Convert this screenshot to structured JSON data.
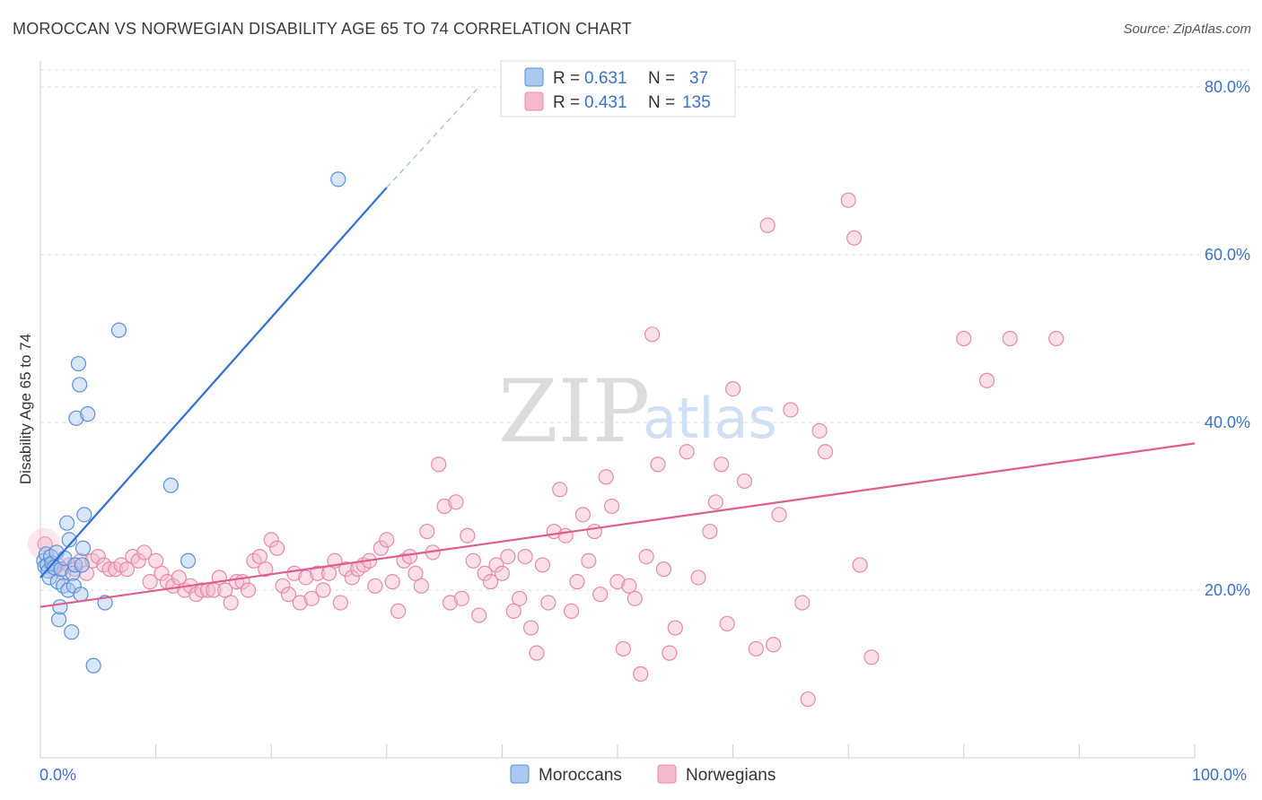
{
  "header": {
    "title": "MOROCCAN VS NORWEGIAN DISABILITY AGE 65 TO 74 CORRELATION CHART",
    "source": "Source: ZipAtlas.com"
  },
  "watermark": {
    "zip": "ZIP",
    "atlas": "atlas"
  },
  "colors": {
    "moroccan_fill": "#aac8f0",
    "moroccan_stroke": "#5b8fd6",
    "moroccan_line": "#2f6fd0",
    "norwegian_fill": "#f6b8cc",
    "norwegian_stroke": "#e48aa8",
    "norwegian_line": "#e05c8c",
    "tick_text": "#3b72c4"
  },
  "legend": {
    "rows": [
      {
        "r_label": "R =",
        "r_value": "0.631",
        "n_label": "N =",
        "n_value": "37"
      },
      {
        "r_label": "R =",
        "r_value": "0.431",
        "n_label": "N =",
        "n_value": "135"
      }
    ]
  },
  "chart_data": {
    "type": "scatter",
    "title": "MOROCCAN VS NORWEGIAN DISABILITY AGE 65 TO 74 CORRELATION CHART",
    "xlabel": "",
    "ylabel": "Disability Age 65 to 74",
    "xlim": [
      0,
      100
    ],
    "ylim": [
      0,
      80
    ],
    "x_tick_labels": [
      "0.0%",
      "100.0%"
    ],
    "y_ticks": [
      20,
      40,
      60,
      80
    ],
    "y_tick_labels": [
      "20.0%",
      "40.0%",
      "60.0%",
      "80.0%"
    ],
    "grid": true,
    "legend_position": "top-center",
    "series": [
      {
        "name": "Moroccans",
        "r": 0.631,
        "n": 37,
        "trend": {
          "x0": 0,
          "y0": 21.5,
          "x1": 30,
          "y1": 68,
          "dash_to_x": 38,
          "dash_to_y": 80
        },
        "points": [
          [
            0.3,
            23.5
          ],
          [
            0.4,
            22.8
          ],
          [
            0.5,
            24.3
          ],
          [
            0.6,
            23.0
          ],
          [
            0.7,
            22.3
          ],
          [
            0.8,
            21.5
          ],
          [
            0.9,
            24.0
          ],
          [
            1.0,
            23.2
          ],
          [
            1.2,
            22.7
          ],
          [
            1.4,
            24.5
          ],
          [
            1.5,
            21.0
          ],
          [
            1.6,
            16.5
          ],
          [
            1.7,
            18.0
          ],
          [
            1.8,
            22.5
          ],
          [
            2.0,
            20.5
          ],
          [
            2.1,
            23.8
          ],
          [
            2.3,
            28.0
          ],
          [
            2.4,
            20.0
          ],
          [
            2.5,
            26.0
          ],
          [
            2.7,
            15.0
          ],
          [
            2.8,
            22.0
          ],
          [
            2.9,
            20.5
          ],
          [
            3.0,
            23.0
          ],
          [
            3.1,
            40.5
          ],
          [
            3.3,
            47.0
          ],
          [
            3.4,
            44.5
          ],
          [
            3.5,
            19.5
          ],
          [
            3.6,
            23.0
          ],
          [
            3.7,
            25.0
          ],
          [
            3.8,
            29.0
          ],
          [
            4.1,
            41.0
          ],
          [
            4.6,
            11.0
          ],
          [
            5.6,
            18.5
          ],
          [
            6.8,
            51.0
          ],
          [
            11.3,
            32.5
          ],
          [
            12.8,
            23.5
          ],
          [
            25.8,
            69.0
          ]
        ]
      },
      {
        "name": "Norwegians",
        "r": 0.431,
        "n": 135,
        "trend": {
          "x0": 0,
          "y0": 18.0,
          "x1": 100,
          "y1": 37.5
        },
        "points": [
          [
            0.4,
            25.5
          ],
          [
            1.0,
            22.5
          ],
          [
            1.5,
            23.0
          ],
          [
            2.0,
            22.0
          ],
          [
            2.5,
            23.0
          ],
          [
            3.0,
            22.5
          ],
          [
            3.5,
            23.5
          ],
          [
            4.0,
            22.0
          ],
          [
            4.5,
            23.5
          ],
          [
            5.0,
            24.0
          ],
          [
            5.5,
            23.0
          ],
          [
            6.0,
            22.5
          ],
          [
            6.5,
            22.5
          ],
          [
            7.0,
            23.0
          ],
          [
            7.5,
            22.5
          ],
          [
            8.0,
            24.0
          ],
          [
            8.5,
            23.5
          ],
          [
            9.0,
            24.5
          ],
          [
            9.5,
            21.0
          ],
          [
            10.0,
            23.5
          ],
          [
            10.5,
            22.0
          ],
          [
            11.0,
            21.0
          ],
          [
            11.5,
            20.5
          ],
          [
            12.0,
            21.5
          ],
          [
            12.5,
            20.0
          ],
          [
            13.0,
            20.5
          ],
          [
            13.5,
            19.5
          ],
          [
            14.0,
            20.0
          ],
          [
            14.5,
            20.0
          ],
          [
            15.0,
            20.0
          ],
          [
            15.5,
            21.5
          ],
          [
            16.0,
            20.0
          ],
          [
            16.5,
            18.5
          ],
          [
            17.0,
            21.0
          ],
          [
            17.5,
            21.0
          ],
          [
            18.0,
            20.0
          ],
          [
            18.5,
            23.5
          ],
          [
            19.0,
            24.0
          ],
          [
            19.5,
            22.5
          ],
          [
            20.0,
            26.0
          ],
          [
            20.5,
            25.0
          ],
          [
            21.0,
            20.5
          ],
          [
            21.5,
            19.5
          ],
          [
            22.0,
            22.0
          ],
          [
            22.5,
            18.5
          ],
          [
            23.0,
            21.5
          ],
          [
            23.5,
            19.0
          ],
          [
            24.0,
            22.0
          ],
          [
            24.5,
            20.0
          ],
          [
            25.0,
            22.0
          ],
          [
            25.5,
            23.5
          ],
          [
            26.0,
            18.5
          ],
          [
            26.5,
            22.5
          ],
          [
            27.0,
            21.5
          ],
          [
            27.5,
            22.5
          ],
          [
            28.0,
            23.0
          ],
          [
            28.5,
            23.5
          ],
          [
            29.0,
            20.5
          ],
          [
            29.5,
            25.0
          ],
          [
            30.0,
            26.0
          ],
          [
            30.5,
            21.0
          ],
          [
            31.0,
            17.5
          ],
          [
            31.5,
            23.5
          ],
          [
            32.0,
            24.0
          ],
          [
            32.5,
            22.0
          ],
          [
            33.0,
            20.5
          ],
          [
            33.5,
            27.0
          ],
          [
            34.0,
            24.5
          ],
          [
            34.5,
            35.0
          ],
          [
            35.0,
            30.0
          ],
          [
            35.5,
            18.5
          ],
          [
            36.0,
            30.5
          ],
          [
            36.5,
            19.0
          ],
          [
            37.0,
            26.5
          ],
          [
            37.5,
            23.5
          ],
          [
            38.0,
            17.0
          ],
          [
            38.5,
            22.0
          ],
          [
            39.0,
            21.0
          ],
          [
            39.5,
            23.0
          ],
          [
            40.0,
            22.0
          ],
          [
            40.5,
            24.0
          ],
          [
            41.0,
            17.5
          ],
          [
            41.5,
            19.0
          ],
          [
            42.0,
            24.0
          ],
          [
            42.5,
            15.5
          ],
          [
            43.0,
            12.5
          ],
          [
            43.5,
            23.0
          ],
          [
            44.0,
            18.5
          ],
          [
            44.5,
            27.0
          ],
          [
            45.0,
            32.0
          ],
          [
            45.5,
            26.5
          ],
          [
            46.0,
            17.5
          ],
          [
            46.5,
            21.0
          ],
          [
            47.0,
            29.0
          ],
          [
            47.5,
            23.5
          ],
          [
            48.0,
            27.0
          ],
          [
            48.5,
            19.5
          ],
          [
            49.0,
            33.5
          ],
          [
            49.5,
            30.0
          ],
          [
            50.0,
            21.0
          ],
          [
            50.5,
            13.0
          ],
          [
            51.0,
            20.5
          ],
          [
            51.5,
            19.0
          ],
          [
            52.0,
            10.0
          ],
          [
            52.5,
            24.0
          ],
          [
            53.0,
            50.5
          ],
          [
            53.5,
            35.0
          ],
          [
            54.0,
            22.5
          ],
          [
            54.5,
            12.5
          ],
          [
            55.0,
            15.5
          ],
          [
            56.0,
            36.5
          ],
          [
            57.0,
            21.5
          ],
          [
            58.0,
            27.0
          ],
          [
            58.5,
            30.5
          ],
          [
            59.0,
            35.0
          ],
          [
            59.5,
            16.0
          ],
          [
            60.0,
            44.0
          ],
          [
            61.0,
            33.0
          ],
          [
            62.0,
            13.0
          ],
          [
            63.0,
            63.5
          ],
          [
            63.5,
            13.5
          ],
          [
            64.0,
            29.0
          ],
          [
            65.0,
            41.5
          ],
          [
            66.0,
            18.5
          ],
          [
            66.5,
            7.0
          ],
          [
            67.5,
            39.0
          ],
          [
            68.0,
            36.5
          ],
          [
            70.0,
            66.5
          ],
          [
            70.5,
            62.0
          ],
          [
            71.0,
            23.0
          ],
          [
            72.0,
            12.0
          ],
          [
            80.0,
            50.0
          ],
          [
            82.0,
            45.0
          ],
          [
            84.0,
            50.0
          ],
          [
            88.0,
            50.0
          ]
        ]
      }
    ]
  },
  "bottom_legend": {
    "items": [
      {
        "label": "Moroccans"
      },
      {
        "label": "Norwegians"
      }
    ]
  }
}
